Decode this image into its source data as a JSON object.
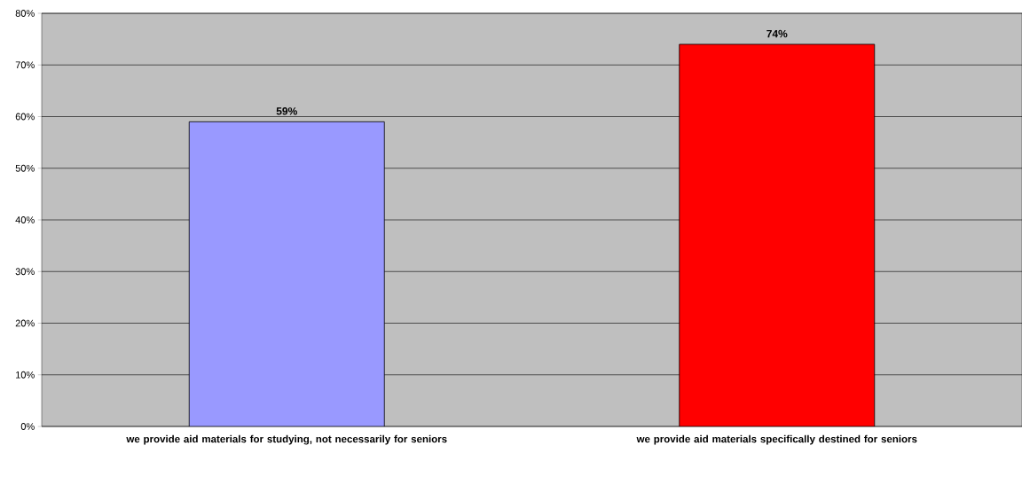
{
  "chart_data": {
    "type": "bar",
    "categories": [
      "we provide aid materials for studying, not necessarily for seniors",
      "we provide aid materials specifically destined for seniors"
    ],
    "values": [
      59,
      74
    ],
    "colors": [
      "#9999ff",
      "#ff0000"
    ],
    "value_labels": [
      "59%",
      "74%"
    ],
    "ylim": [
      0,
      80
    ],
    "yticks": [
      {
        "value": 0,
        "label": "0%"
      },
      {
        "value": 10,
        "label": "10%"
      },
      {
        "value": 20,
        "label": "20%"
      },
      {
        "value": 30,
        "label": "30%"
      },
      {
        "value": 40,
        "label": "40%"
      },
      {
        "value": 50,
        "label": "50%"
      },
      {
        "value": 60,
        "label": "60%"
      },
      {
        "value": 70,
        "label": "70%"
      },
      {
        "value": 80,
        "label": "80%"
      }
    ],
    "grid": "y"
  }
}
